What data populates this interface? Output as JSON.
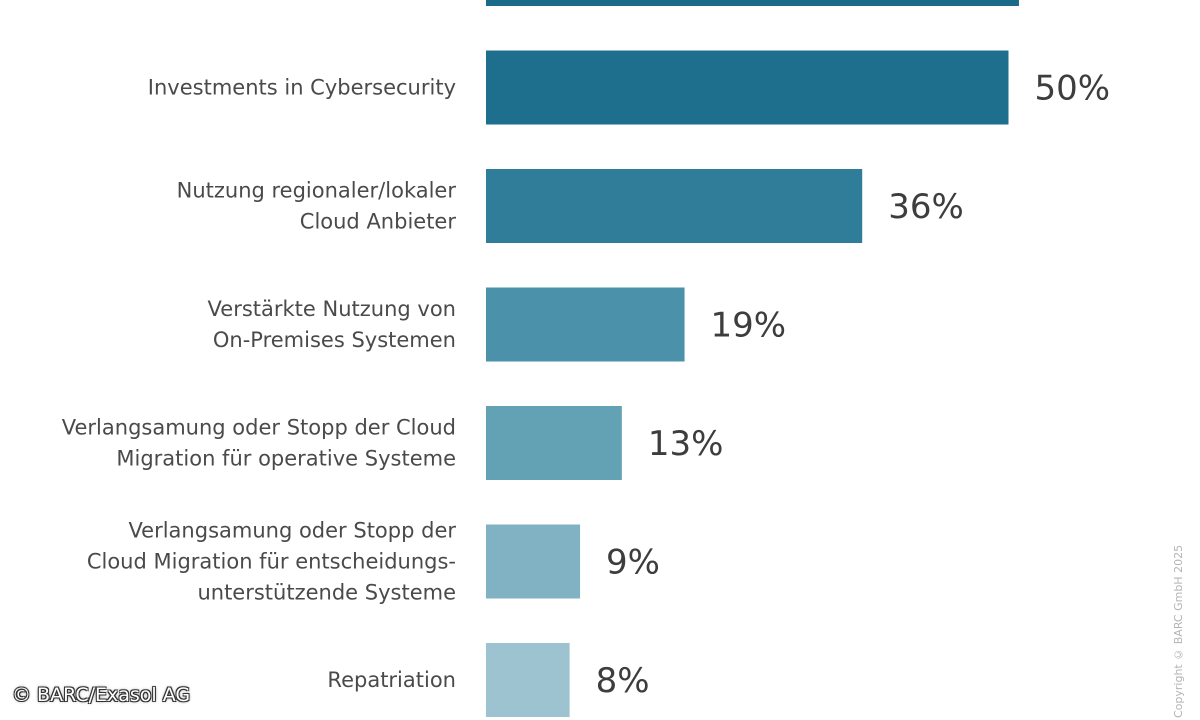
{
  "chart_data": {
    "type": "bar",
    "orientation": "horizontal",
    "categories": [
      "",
      "Investments in Cybersecurity",
      "Nutzung regionaler/lokaler Cloud Anbieter",
      "Verstärkte Nutzung von On-Premises Systemen",
      "Verlangsamung oder Stopp der Cloud Migration für operative Systeme",
      "Verlangsamung oder Stopp der Cloud Migration für entscheidungs-unterstützende Systeme",
      "Repatriation"
    ],
    "category_lines": [
      [],
      [
        "Investments in Cybersecurity"
      ],
      [
        "Nutzung regionaler/lokaler",
        "Cloud Anbieter"
      ],
      [
        "Verstärkte Nutzung von",
        "On-Premises Systemen"
      ],
      [
        "Verlangsamung oder Stopp der Cloud",
        "Migration für operative Systeme"
      ],
      [
        "Verlangsamung oder Stopp der",
        "Cloud Migration für entscheidungs-",
        "unterstützende Systeme"
      ],
      [
        "Repatriation"
      ]
    ],
    "values": [
      51,
      50,
      36,
      19,
      13,
      9,
      8
    ],
    "value_labels": [
      "",
      "50%",
      "36%",
      "19%",
      "13%",
      "9%",
      "8%"
    ],
    "unit": "%",
    "xlim": [
      0,
      100
    ],
    "colors": [
      "#1a6a8a",
      "#1e6f8e",
      "#2f7d98",
      "#4a91a9",
      "#63a2b5",
      "#80b2c3",
      "#9cc3cf"
    ],
    "grid": false,
    "legend": "none",
    "title": "",
    "xlabel": "",
    "ylabel": ""
  },
  "copyright": "Copyright © BARC GmbH 2025",
  "watermark": "© BARC/Exasol AG"
}
